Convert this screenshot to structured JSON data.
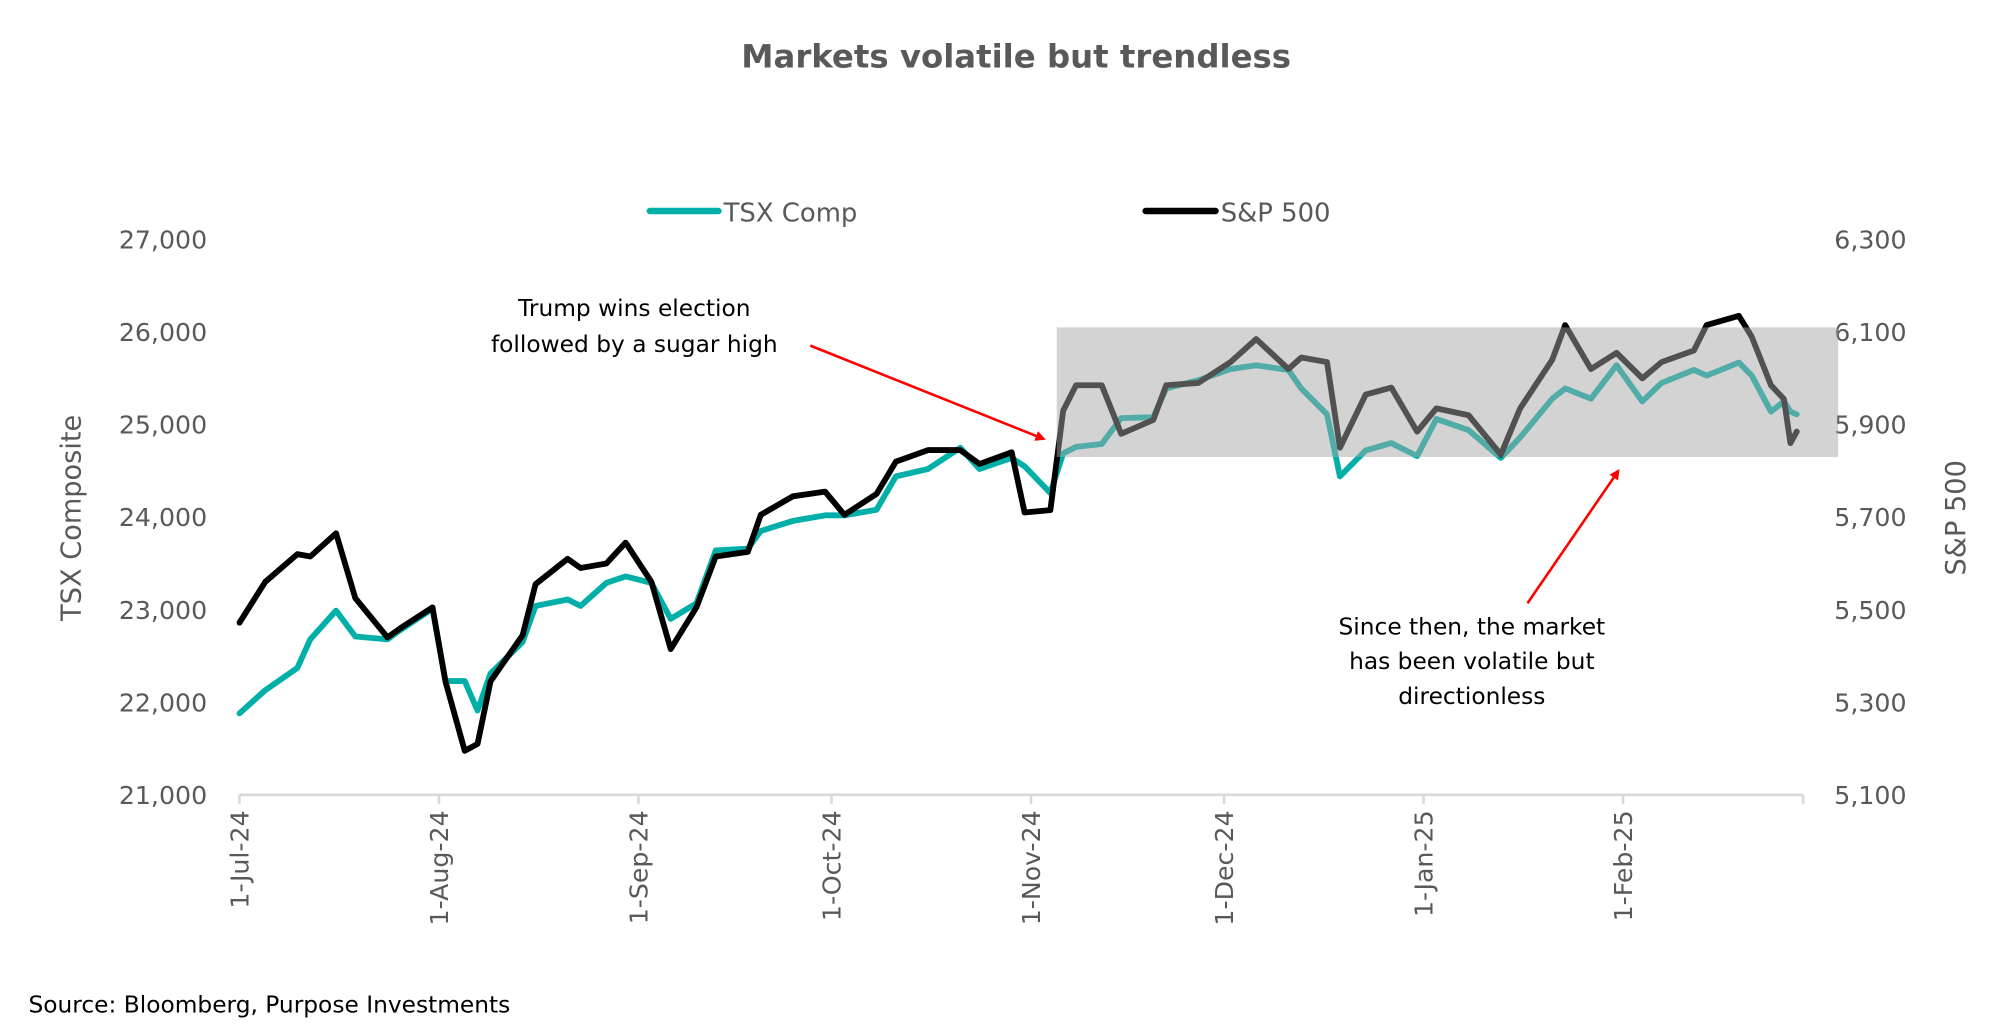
{
  "chart_data": {
    "type": "line",
    "title": "Markets volatile but trendless",
    "source": "Source: Bloomberg, Purpose Investments",
    "x_axis": {
      "type": "date",
      "range": [
        "2024-07-01",
        "2025-03-01"
      ],
      "ticks": [
        "2024-07-01",
        "2024-08-01",
        "2024-09-01",
        "2024-10-01",
        "2024-11-01",
        "2024-12-01",
        "2025-01-01",
        "2025-02-01"
      ],
      "tick_labels": [
        "1-Jul-24",
        "1-Aug-24",
        "1-Sep-24",
        "1-Oct-24",
        "1-Nov-24",
        "1-Dec-24",
        "1-Jan-25",
        "1-Feb-25"
      ]
    },
    "y_left": {
      "label": "TSX Composite",
      "range": [
        21000,
        27000
      ],
      "ticks": [
        21000,
        22000,
        23000,
        24000,
        25000,
        26000,
        27000
      ],
      "tick_labels": [
        "21,000",
        "22,000",
        "23,000",
        "24,000",
        "25,000",
        "26,000",
        "27,000"
      ]
    },
    "y_right": {
      "label": "S&P 500",
      "range": [
        5100,
        6300
      ],
      "ticks": [
        5100,
        5300,
        5500,
        5700,
        5900,
        6100,
        6300
      ],
      "tick_labels": [
        "5,100",
        "5,300",
        "5,500",
        "5,700",
        "5,900",
        "6,100",
        "6,300"
      ]
    },
    "grid": false,
    "legend": {
      "placement": "top",
      "entries": [
        "TSX Comp",
        "S&P 500"
      ]
    },
    "x": [
      "2024-07-01",
      "2024-07-05",
      "2024-07-10",
      "2024-07-12",
      "2024-07-16",
      "2024-07-19",
      "2024-07-24",
      "2024-07-26",
      "2024-07-31",
      "2024-08-02",
      "2024-08-05",
      "2024-08-07",
      "2024-08-09",
      "2024-08-14",
      "2024-08-16",
      "2024-08-21",
      "2024-08-23",
      "2024-08-27",
      "2024-08-30",
      "2024-09-03",
      "2024-09-06",
      "2024-09-10",
      "2024-09-13",
      "2024-09-18",
      "2024-09-20",
      "2024-09-25",
      "2024-09-30",
      "2024-10-03",
      "2024-10-08",
      "2024-10-11",
      "2024-10-16",
      "2024-10-21",
      "2024-10-24",
      "2024-10-29",
      "2024-10-31",
      "2024-11-04",
      "2024-11-06",
      "2024-11-08",
      "2024-11-12",
      "2024-11-15",
      "2024-11-20",
      "2024-11-22",
      "2024-11-27",
      "2024-12-02",
      "2024-12-06",
      "2024-12-11",
      "2024-12-13",
      "2024-12-17",
      "2024-12-19",
      "2024-12-23",
      "2024-12-27",
      "2024-12-31",
      "2025-01-03",
      "2025-01-08",
      "2025-01-13",
      "2025-01-16",
      "2025-01-21",
      "2025-01-23",
      "2025-01-27",
      "2025-01-31",
      "2025-02-04",
      "2025-02-07",
      "2025-02-12",
      "2025-02-14",
      "2025-02-19",
      "2025-02-21",
      "2025-02-24",
      "2025-02-26",
      "2025-02-27",
      "2025-02-28"
    ],
    "series": [
      {
        "name": "TSX Comp",
        "axis": "left",
        "color": "#00B0A8",
        "values": [
          21880,
          22130,
          22370,
          22680,
          22990,
          22710,
          22680,
          22780,
          23010,
          22230,
          22230,
          21910,
          22310,
          22650,
          23040,
          23110,
          23040,
          23290,
          23360,
          23290,
          22900,
          23070,
          23640,
          23660,
          23850,
          23960,
          24020,
          24020,
          24080,
          24440,
          24520,
          24750,
          24520,
          24640,
          24550,
          24260,
          24690,
          24760,
          24790,
          25070,
          25080,
          25390,
          25480,
          25600,
          25640,
          25590,
          25390,
          25110,
          24440,
          24720,
          24800,
          24660,
          25060,
          24940,
          24640,
          24860,
          25280,
          25390,
          25280,
          25640,
          25250,
          25450,
          25590,
          25530,
          25670,
          25530,
          25140,
          25250,
          25140,
          25110
        ]
      },
      {
        "name": "S&P 500",
        "axis": "right",
        "color": "#000000",
        "values": [
          5472,
          5560,
          5620,
          5615,
          5665,
          5525,
          5440,
          5460,
          5505,
          5345,
          5195,
          5210,
          5345,
          5445,
          5555,
          5610,
          5590,
          5600,
          5645,
          5560,
          5415,
          5505,
          5615,
          5625,
          5705,
          5745,
          5755,
          5705,
          5750,
          5820,
          5845,
          5845,
          5815,
          5840,
          5710,
          5715,
          5930,
          5985,
          5985,
          5880,
          5910,
          5985,
          5990,
          6035,
          6085,
          6020,
          6045,
          6035,
          5850,
          5965,
          5980,
          5885,
          5935,
          5920,
          5835,
          5935,
          6040,
          6115,
          6020,
          6055,
          6000,
          6035,
          6060,
          6115,
          6135,
          6090,
          5985,
          5955,
          5860,
          5885
        ]
      }
    ],
    "highlight": {
      "x_start": "2024-11-05",
      "axis": "right",
      "y_range": [
        5830,
        6110
      ],
      "color": "#D3D3D3"
    },
    "annotations": [
      {
        "lines": [
          "Trump wins election",
          "followed by a sugar high"
        ],
        "arrow_color": "#FF0000"
      },
      {
        "lines": [
          "Since then, the market",
          "has been volatile but",
          "directionless"
        ],
        "arrow_color": "#FF0000"
      }
    ]
  }
}
